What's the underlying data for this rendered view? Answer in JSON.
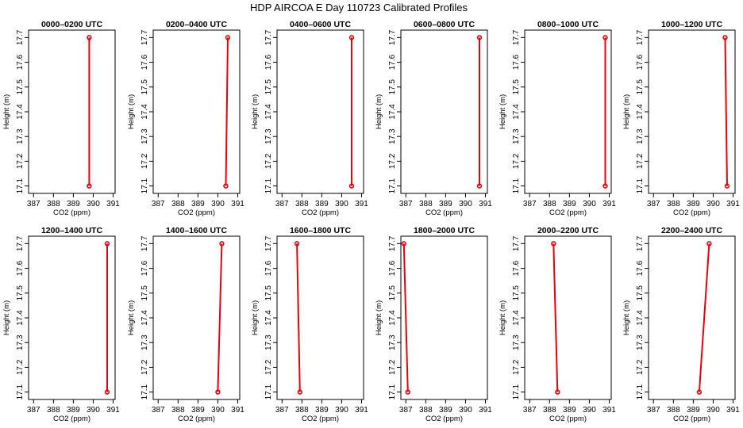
{
  "figure": {
    "title": "HDP AIRCOA E  Day 110723  Calibrated Profiles"
  },
  "colors": {
    "profile": "#e8000b",
    "axes": "#000000",
    "background": "#ffffff"
  },
  "chart_data": [
    {
      "type": "line",
      "title": "0000–0200 UTC",
      "xlabel": "CO2 (ppm)",
      "ylabel": "Height (m)",
      "xlim": [
        386.75,
        391.1
      ],
      "ylim": [
        17.07,
        17.73
      ],
      "xticks": [
        "387",
        "388",
        "389",
        "390",
        "391"
      ],
      "yticks": [
        "17.1",
        "17.2",
        "17.3",
        "17.4",
        "17.5",
        "17.6",
        "17.7"
      ],
      "series": [
        {
          "x": [
            389.8,
            389.8
          ],
          "y": [
            17.1,
            17.7
          ]
        }
      ]
    },
    {
      "type": "line",
      "title": "0200–0400 UTC",
      "xlabel": "CO2 (ppm)",
      "ylabel": "Height (m)",
      "xlim": [
        386.75,
        391.1
      ],
      "ylim": [
        17.07,
        17.73
      ],
      "xticks": [
        "387",
        "388",
        "389",
        "390",
        "391"
      ],
      "yticks": [
        "17.1",
        "17.2",
        "17.3",
        "17.4",
        "17.5",
        "17.6",
        "17.7"
      ],
      "series": [
        {
          "x": [
            390.4,
            390.5
          ],
          "y": [
            17.1,
            17.7
          ]
        }
      ]
    },
    {
      "type": "line",
      "title": "0400–0600 UTC",
      "xlabel": "CO2 (ppm)",
      "ylabel": "Height (m)",
      "xlim": [
        386.75,
        391.1
      ],
      "ylim": [
        17.07,
        17.73
      ],
      "xticks": [
        "387",
        "388",
        "389",
        "390",
        "391"
      ],
      "yticks": [
        "17.1",
        "17.2",
        "17.3",
        "17.4",
        "17.5",
        "17.6",
        "17.7"
      ],
      "series": [
        {
          "x": [
            390.5,
            390.5
          ],
          "y": [
            17.1,
            17.7
          ]
        }
      ]
    },
    {
      "type": "line",
      "title": "0600–0800 UTC",
      "xlabel": "CO2 (ppm)",
      "ylabel": "Height (m)",
      "xlim": [
        386.75,
        391.1
      ],
      "ylim": [
        17.07,
        17.73
      ],
      "xticks": [
        "387",
        "388",
        "389",
        "390",
        "391"
      ],
      "yticks": [
        "17.1",
        "17.2",
        "17.3",
        "17.4",
        "17.5",
        "17.6",
        "17.7"
      ],
      "series": [
        {
          "x": [
            390.7,
            390.7
          ],
          "y": [
            17.1,
            17.7
          ]
        }
      ]
    },
    {
      "type": "line",
      "title": "0800–1000 UTC",
      "xlabel": "CO2 (ppm)",
      "ylabel": "Height (m)",
      "xlim": [
        386.75,
        391.1
      ],
      "ylim": [
        17.07,
        17.73
      ],
      "xticks": [
        "387",
        "388",
        "389",
        "390",
        "391"
      ],
      "yticks": [
        "17.1",
        "17.2",
        "17.3",
        "17.4",
        "17.5",
        "17.6",
        "17.7"
      ],
      "series": [
        {
          "x": [
            390.8,
            390.8
          ],
          "y": [
            17.1,
            17.7
          ]
        }
      ]
    },
    {
      "type": "line",
      "title": "1000–1200 UTC",
      "xlabel": "CO2 (ppm)",
      "ylabel": "Height (m)",
      "xlim": [
        386.75,
        391.1
      ],
      "ylim": [
        17.07,
        17.73
      ],
      "xticks": [
        "387",
        "388",
        "389",
        "390",
        "391"
      ],
      "yticks": [
        "17.1",
        "17.2",
        "17.3",
        "17.4",
        "17.5",
        "17.6",
        "17.7"
      ],
      "series": [
        {
          "x": [
            390.7,
            390.6
          ],
          "y": [
            17.1,
            17.7
          ]
        }
      ]
    },
    {
      "type": "line",
      "title": "1200–1400 UTC",
      "xlabel": "CO2 (ppm)",
      "ylabel": "Height (m)",
      "xlim": [
        386.75,
        391.1
      ],
      "ylim": [
        17.07,
        17.73
      ],
      "xticks": [
        "387",
        "388",
        "389",
        "390",
        "391"
      ],
      "yticks": [
        "17.1",
        "17.2",
        "17.3",
        "17.4",
        "17.5",
        "17.6",
        "17.7"
      ],
      "series": [
        {
          "x": [
            390.7,
            390.7
          ],
          "y": [
            17.1,
            17.7
          ]
        }
      ]
    },
    {
      "type": "line",
      "title": "1400–1600 UTC",
      "xlabel": "CO2 (ppm)",
      "ylabel": "Height (m)",
      "xlim": [
        386.75,
        391.1
      ],
      "ylim": [
        17.07,
        17.73
      ],
      "xticks": [
        "387",
        "388",
        "389",
        "390",
        "391"
      ],
      "yticks": [
        "17.1",
        "17.2",
        "17.3",
        "17.4",
        "17.5",
        "17.6",
        "17.7"
      ],
      "series": [
        {
          "x": [
            390.0,
            390.2
          ],
          "y": [
            17.1,
            17.7
          ]
        }
      ]
    },
    {
      "type": "line",
      "title": "1600–1800 UTC",
      "xlabel": "CO2 (ppm)",
      "ylabel": "Height (m)",
      "xlim": [
        386.75,
        391.1
      ],
      "ylim": [
        17.07,
        17.73
      ],
      "xticks": [
        "387",
        "388",
        "389",
        "390",
        "391"
      ],
      "yticks": [
        "17.1",
        "17.2",
        "17.3",
        "17.4",
        "17.5",
        "17.6",
        "17.7"
      ],
      "series": [
        {
          "x": [
            387.9,
            387.75
          ],
          "y": [
            17.1,
            17.7
          ]
        }
      ]
    },
    {
      "type": "line",
      "title": "1800–2000 UTC",
      "xlabel": "CO2 (ppm)",
      "ylabel": "Height (m)",
      "xlim": [
        386.75,
        391.1
      ],
      "ylim": [
        17.07,
        17.73
      ],
      "xticks": [
        "387",
        "388",
        "389",
        "390",
        "391"
      ],
      "yticks": [
        "17.1",
        "17.2",
        "17.3",
        "17.4",
        "17.5",
        "17.6",
        "17.7"
      ],
      "series": [
        {
          "x": [
            387.1,
            386.9
          ],
          "y": [
            17.1,
            17.7
          ]
        }
      ]
    },
    {
      "type": "line",
      "title": "2000–2200 UTC",
      "xlabel": "CO2 (ppm)",
      "ylabel": "Height (m)",
      "xlim": [
        386.75,
        391.1
      ],
      "ylim": [
        17.07,
        17.73
      ],
      "xticks": [
        "387",
        "388",
        "389",
        "390",
        "391"
      ],
      "yticks": [
        "17.1",
        "17.2",
        "17.3",
        "17.4",
        "17.5",
        "17.6",
        "17.7"
      ],
      "series": [
        {
          "x": [
            388.4,
            388.2
          ],
          "y": [
            17.1,
            17.7
          ]
        }
      ]
    },
    {
      "type": "line",
      "title": "2200–2400 UTC",
      "xlabel": "CO2 (ppm)",
      "ylabel": "Height (m)",
      "xlim": [
        386.75,
        391.1
      ],
      "ylim": [
        17.07,
        17.73
      ],
      "xticks": [
        "387",
        "388",
        "389",
        "390",
        "391"
      ],
      "yticks": [
        "17.1",
        "17.2",
        "17.3",
        "17.4",
        "17.5",
        "17.6",
        "17.7"
      ],
      "series": [
        {
          "x": [
            389.3,
            389.8
          ],
          "y": [
            17.1,
            17.7
          ]
        }
      ]
    }
  ]
}
